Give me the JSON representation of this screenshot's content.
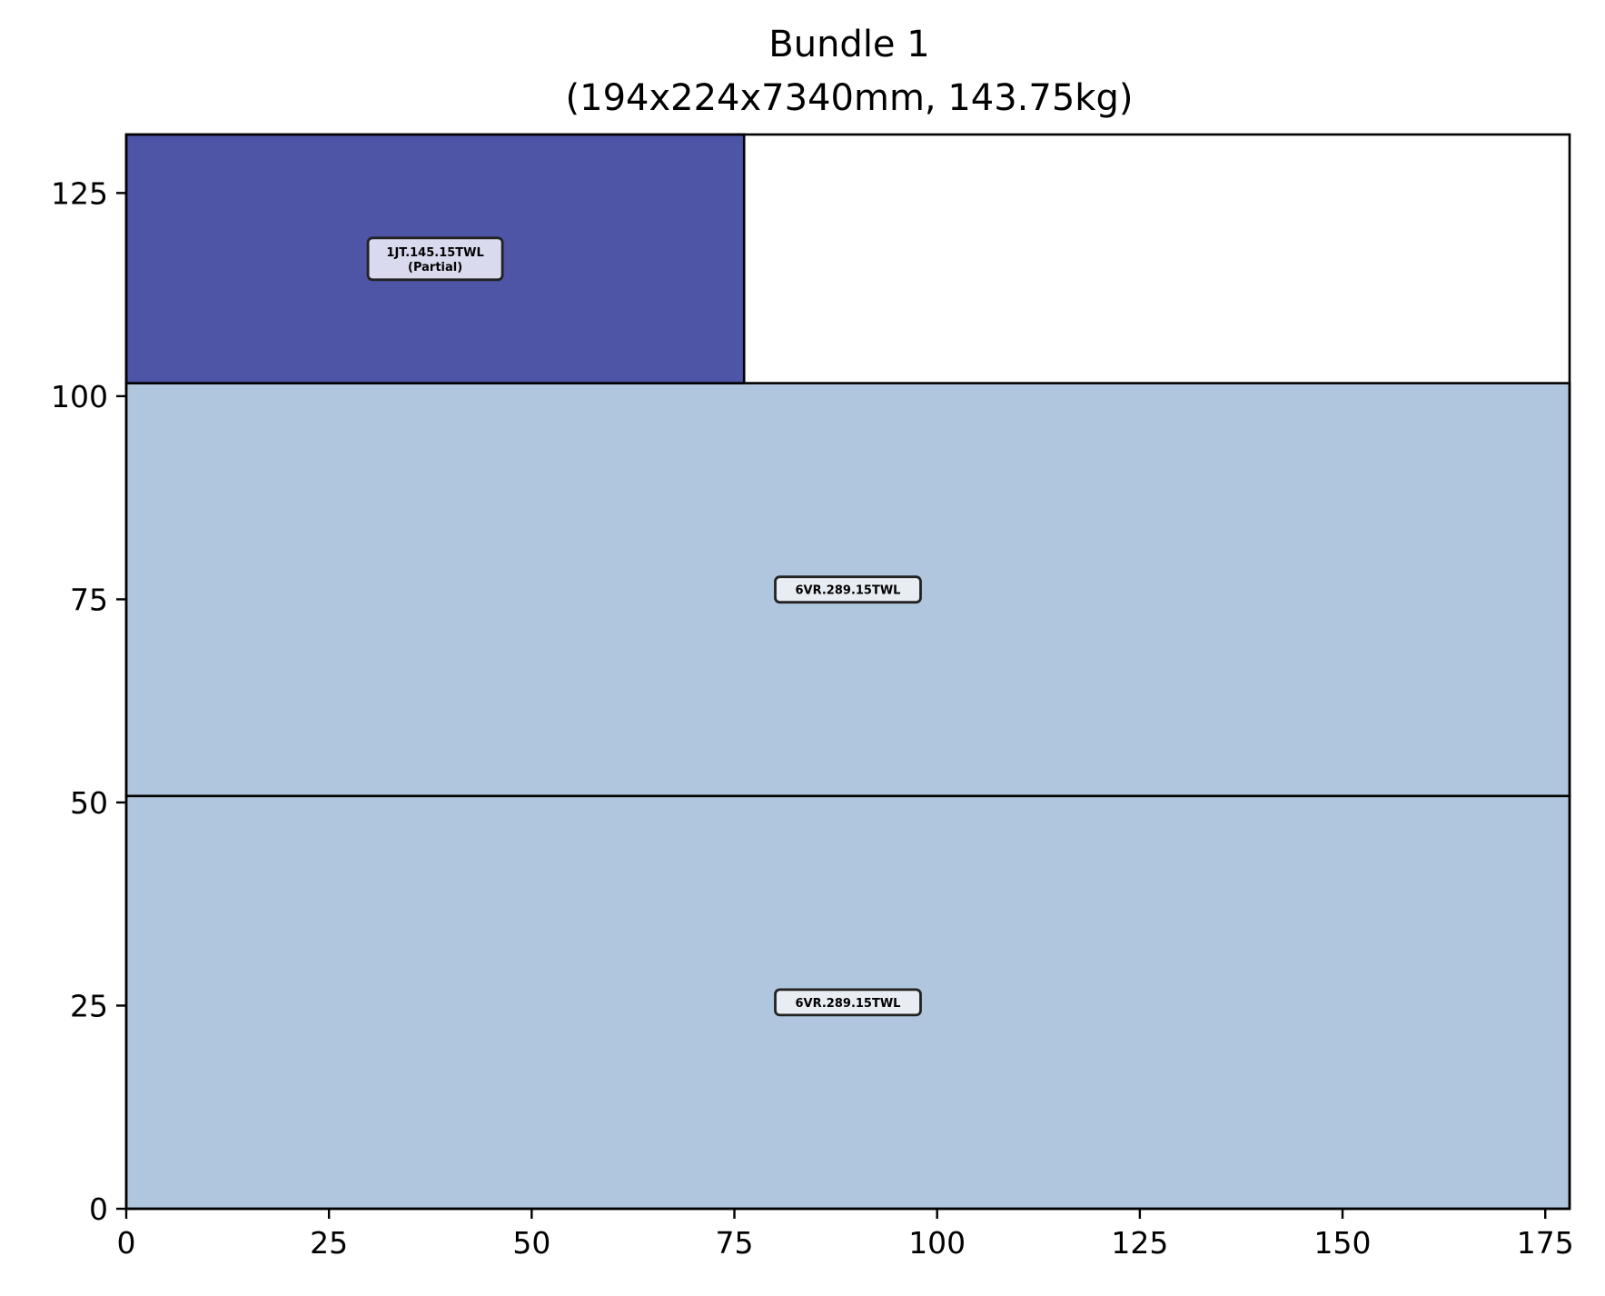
{
  "chart_data": {
    "type": "packing-layout",
    "title": "Bundle 1",
    "subtitle": "(194x224x7340mm, 143.75kg)",
    "xlabel": "",
    "ylabel": "",
    "xlim": [
      0,
      178
    ],
    "ylim": [
      0,
      132.2
    ],
    "xticks": [
      0,
      25,
      50,
      75,
      100,
      125,
      150,
      175
    ],
    "yticks": [
      0,
      25,
      50,
      75,
      100,
      125
    ],
    "grid": false,
    "items": [
      {
        "label": [
          "6VR.289.15TWL"
        ],
        "x": 0,
        "y": 0,
        "width": 178,
        "height": 50.8,
        "color": "#b0c6de"
      },
      {
        "label": [
          "6VR.289.15TWL"
        ],
        "x": 0,
        "y": 50.8,
        "width": 178,
        "height": 50.8,
        "color": "#b0c6de"
      },
      {
        "label": [
          "1JT.145.15TWL",
          "(Partial)"
        ],
        "x": 0,
        "y": 101.6,
        "width": 76.2,
        "height": 30.6,
        "color": "#4e54a6"
      }
    ],
    "label_box_colors": {
      "light": "#e8ecf3",
      "dark": "#d9daee"
    }
  }
}
